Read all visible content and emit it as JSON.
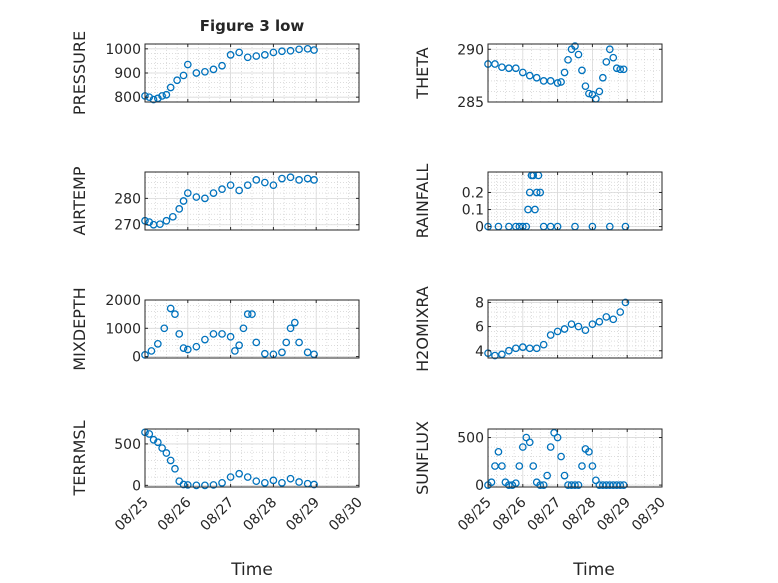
{
  "figure": {
    "title": "Figure 3 low",
    "xlabel": "Time",
    "marker_color": "#0072BD",
    "x_tick_labels": [
      "08/25",
      "08/26",
      "08/27",
      "08/28",
      "08/29",
      "08/30"
    ],
    "x_range_days": [
      25,
      30
    ]
  },
  "chart_data": [
    {
      "type": "scatter",
      "ylabel": "PRESSURE",
      "ylim": [
        780,
        1020
      ],
      "yticks": [
        800,
        900,
        1000
      ],
      "grid": true,
      "xlim": [
        "08/25",
        "08/30"
      ],
      "x": [
        25.0,
        25.1,
        25.2,
        25.3,
        25.4,
        25.5,
        25.6,
        25.75,
        25.9,
        26.0,
        26.2,
        26.4,
        26.6,
        26.8,
        27.0,
        27.2,
        27.4,
        27.6,
        27.8,
        28.0,
        28.2,
        28.4,
        28.6,
        28.8,
        28.95
      ],
      "y": [
        805,
        800,
        790,
        795,
        805,
        810,
        840,
        870,
        890,
        935,
        900,
        905,
        915,
        930,
        975,
        985,
        965,
        970,
        975,
        985,
        990,
        992,
        998,
        1000,
        995
      ]
    },
    {
      "type": "scatter",
      "ylabel": "THETA",
      "ylim": [
        285,
        290.5
      ],
      "yticks": [
        285,
        290
      ],
      "grid": true,
      "xlim": [
        "08/25",
        "08/30"
      ],
      "x": [
        25.0,
        25.2,
        25.4,
        25.6,
        25.8,
        26.0,
        26.2,
        26.4,
        26.6,
        26.8,
        27.0,
        27.1,
        27.2,
        27.3,
        27.4,
        27.5,
        27.6,
        27.7,
        27.8,
        27.9,
        28.0,
        28.1,
        28.2,
        28.3,
        28.4,
        28.5,
        28.6,
        28.7,
        28.8,
        28.9
      ],
      "y": [
        288.6,
        288.6,
        288.3,
        288.2,
        288.2,
        287.8,
        287.5,
        287.3,
        287.0,
        287.0,
        286.8,
        286.9,
        287.8,
        289.0,
        290.0,
        290.3,
        289.5,
        288.0,
        286.5,
        285.8,
        285.7,
        285.3,
        286.0,
        287.3,
        288.8,
        290.0,
        289.2,
        288.2,
        288.1,
        288.1
      ]
    },
    {
      "type": "scatter",
      "ylabel": "AIR_TEMP",
      "ylim": [
        268,
        290
      ],
      "yticks": [
        270,
        280
      ],
      "grid": true,
      "xlim": [
        "08/25",
        "08/30"
      ],
      "x": [
        25.0,
        25.1,
        25.2,
        25.35,
        25.5,
        25.65,
        25.8,
        25.9,
        26.0,
        26.2,
        26.4,
        26.6,
        26.8,
        27.0,
        27.2,
        27.4,
        27.6,
        27.8,
        28.0,
        28.2,
        28.4,
        28.6,
        28.8,
        28.95
      ],
      "y": [
        271.5,
        271,
        270,
        270.2,
        271.5,
        273,
        276,
        279,
        282,
        280.5,
        280,
        282,
        283.5,
        285,
        283,
        285,
        287,
        286,
        285,
        287.5,
        288,
        287,
        287.5,
        287
      ]
    },
    {
      "type": "scatter",
      "ylabel": "RAINFALL",
      "ylim": [
        -0.02,
        0.32
      ],
      "yticks": [
        0,
        0.1,
        0.2
      ],
      "grid": true,
      "xlim": [
        "08/25",
        "08/30"
      ],
      "x": [
        25.0,
        25.3,
        25.6,
        25.8,
        25.9,
        26.0,
        26.1,
        26.15,
        26.2,
        26.25,
        26.3,
        26.35,
        26.4,
        26.45,
        26.5,
        26.6,
        26.8,
        27.0,
        27.5,
        28.0,
        28.5,
        28.95
      ],
      "y": [
        0,
        0,
        0,
        0,
        0,
        0,
        0,
        0.1,
        0.2,
        0.3,
        0.3,
        0.1,
        0.2,
        0.3,
        0.2,
        0,
        0,
        0,
        0,
        0,
        0,
        0
      ]
    },
    {
      "type": "scatter",
      "ylabel": "MIXDEPTH",
      "ylim": [
        -50,
        2000
      ],
      "yticks": [
        0,
        1000,
        2000
      ],
      "grid": true,
      "xlim": [
        "08/25",
        "08/30"
      ],
      "x": [
        25.0,
        25.15,
        25.3,
        25.45,
        25.6,
        25.7,
        25.8,
        25.9,
        26.0,
        26.2,
        26.4,
        26.6,
        26.8,
        27.0,
        27.1,
        27.2,
        27.3,
        27.4,
        27.5,
        27.6,
        27.8,
        28.0,
        28.2,
        28.3,
        28.4,
        28.5,
        28.6,
        28.8,
        28.95
      ],
      "y": [
        60,
        200,
        450,
        1000,
        1700,
        1500,
        800,
        300,
        250,
        350,
        600,
        800,
        800,
        700,
        200,
        400,
        1000,
        1500,
        1500,
        500,
        100,
        80,
        150,
        500,
        1000,
        1200,
        500,
        150,
        80
      ]
    },
    {
      "type": "scatter",
      "ylabel": "H2OMIXRA",
      "ylim": [
        3.4,
        8.2
      ],
      "yticks": [
        4,
        6,
        8
      ],
      "grid": true,
      "xlim": [
        "08/25",
        "08/30"
      ],
      "x": [
        25.0,
        25.2,
        25.4,
        25.6,
        25.8,
        26.0,
        26.2,
        26.4,
        26.6,
        26.8,
        27.0,
        27.2,
        27.4,
        27.6,
        27.8,
        28.0,
        28.2,
        28.4,
        28.6,
        28.8,
        28.95
      ],
      "y": [
        3.8,
        3.6,
        3.7,
        4.0,
        4.2,
        4.3,
        4.2,
        4.2,
        4.5,
        5.3,
        5.6,
        5.8,
        6.2,
        6.0,
        5.7,
        6.2,
        6.4,
        6.8,
        6.6,
        7.2,
        8.0
      ]
    },
    {
      "type": "scatter",
      "ylabel": "TERR_MSL",
      "ylim": [
        -20,
        680
      ],
      "yticks": [
        0,
        500
      ],
      "grid": true,
      "xlim": [
        "08/25",
        "08/30"
      ],
      "x": [
        25.0,
        25.1,
        25.2,
        25.3,
        25.4,
        25.5,
        25.6,
        25.7,
        25.8,
        25.9,
        26.0,
        26.2,
        26.4,
        26.6,
        26.8,
        27.0,
        27.2,
        27.4,
        27.6,
        27.8,
        28.0,
        28.2,
        28.4,
        28.6,
        28.8,
        28.95
      ],
      "y": [
        640,
        620,
        550,
        520,
        450,
        390,
        300,
        200,
        50,
        10,
        5,
        0,
        0,
        5,
        30,
        100,
        140,
        100,
        50,
        30,
        60,
        30,
        80,
        40,
        20,
        10
      ]
    },
    {
      "type": "scatter",
      "ylabel": "SUN_FLUX",
      "ylim": [
        -20,
        590
      ],
      "yticks": [
        0,
        500
      ],
      "grid": true,
      "xlim": [
        "08/25",
        "08/30"
      ],
      "x": [
        25.0,
        25.1,
        25.2,
        25.3,
        25.4,
        25.5,
        25.6,
        25.7,
        25.8,
        25.9,
        26.0,
        26.1,
        26.2,
        26.3,
        26.4,
        26.5,
        26.6,
        26.7,
        26.8,
        26.9,
        27.0,
        27.1,
        27.2,
        27.3,
        27.4,
        27.5,
        27.6,
        27.7,
        27.8,
        27.9,
        28.0,
        28.1,
        28.2,
        28.3,
        28.4,
        28.5,
        28.6,
        28.7,
        28.8,
        28.9
      ],
      "y": [
        0,
        30,
        200,
        350,
        200,
        30,
        0,
        0,
        20,
        200,
        400,
        500,
        450,
        200,
        30,
        0,
        0,
        100,
        400,
        550,
        500,
        300,
        100,
        0,
        0,
        0,
        0,
        200,
        380,
        350,
        200,
        50,
        0,
        0,
        0,
        0,
        0,
        0,
        0,
        0
      ]
    }
  ]
}
